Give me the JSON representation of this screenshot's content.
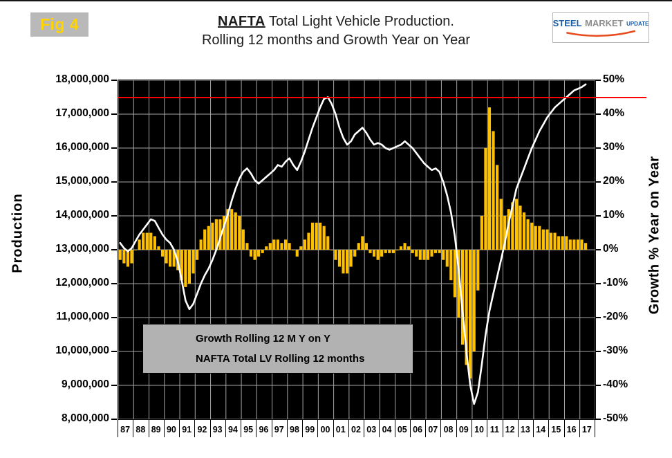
{
  "fig_label": "Fig 4",
  "title": {
    "emph": "NAFTA",
    "rest": " Total Light Vehicle Production.",
    "line2": "Rolling 12 months and Growth Year on Year"
  },
  "logo": {
    "word1": "STEEL",
    "word2": "MARKET",
    "word3": "UPDATE"
  },
  "colors": {
    "bar": "#FFC000",
    "line": "#FFFFFF",
    "reference": "#FF0000",
    "plot_bg": "#000000",
    "grid": "#FFFFFF",
    "fig_label": "#FFD400",
    "fig_label_bg": "#B9B9B9",
    "legend_bg": "#B2B2B2",
    "logo_blue": "#1A5BA6",
    "logo_gray": "#8C8C8C",
    "logo_swoosh": "#E84C1E"
  },
  "legend": {
    "items": [
      {
        "label": "Growth Rolling 12 M Y on Y",
        "swatch_color": "#FFC000",
        "text_color": "#000000"
      },
      {
        "label": "NAFTA Total LV Rolling 12 months",
        "swatch_color": "#FFFFFF",
        "text_color": "#FFFFFF"
      }
    ]
  },
  "chart_data": {
    "type": "combo",
    "subtypes": [
      "bar",
      "line"
    ],
    "title": "NAFTA Total Light Vehicle Production. Rolling 12 months and Growth Year on Year",
    "start_year": 1987,
    "end_year": 2017,
    "points_per_year": 4,
    "x_year_labels": [
      "87",
      "88",
      "89",
      "90",
      "91",
      "92",
      "93",
      "94",
      "95",
      "96",
      "97",
      "98",
      "99",
      "00",
      "01",
      "02",
      "03",
      "04",
      "05",
      "06",
      "07",
      "08",
      "09",
      "10",
      "11",
      "12",
      "13",
      "14",
      "15",
      "16",
      "17"
    ],
    "left_axis": {
      "label": "Production",
      "min": 8000000,
      "max": 18000000,
      "step": 1000000,
      "tick_labels": [
        "18,000,000",
        "17,000,000",
        "16,000,000",
        "15,000,000",
        "14,000,000",
        "13,000,000",
        "12,000,000",
        "11,000,000",
        "10,000,000",
        "9,000,000",
        "8,000,000"
      ]
    },
    "right_axis": {
      "label": "Growth % Year on Year",
      "min": -50,
      "max": 50,
      "step": 10,
      "tick_labels": [
        "50%",
        "40%",
        "30%",
        "20%",
        "10%",
        "0%",
        "-10%",
        "-20%",
        "-30%",
        "-40%",
        "-50%"
      ]
    },
    "reference_line": {
      "production_value": 17500000,
      "color": "#FF0000"
    },
    "grid": true,
    "legend_position": "inside-bottom-left",
    "series": [
      {
        "name": "Growth Rolling 12 M Y on Y",
        "type": "bar",
        "axis": "right",
        "unit": "percent_yoy",
        "color": "#FFC000",
        "values": [
          -3,
          -4,
          -5,
          -4,
          0,
          3,
          5,
          5,
          5,
          4,
          1,
          -2,
          -4,
          -5,
          -5,
          -6,
          -9,
          -11,
          -10,
          -7,
          -3,
          3,
          6,
          7,
          8,
          9,
          9,
          10,
          12,
          12,
          11,
          10,
          6,
          2,
          -2,
          -3,
          -2,
          -1,
          1,
          2,
          3,
          3,
          2,
          3,
          2,
          0,
          -2,
          1,
          3,
          5,
          8,
          8,
          8,
          7,
          4,
          0,
          -3,
          -5,
          -7,
          -7,
          -5,
          -2,
          2,
          4,
          2,
          -1,
          -2,
          -3,
          -2,
          -1,
          -1,
          -1,
          0,
          1,
          2,
          1,
          -1,
          -2,
          -3,
          -3,
          -3,
          -2,
          -1,
          -1,
          -3,
          -5,
          -9,
          -14,
          -20,
          -28,
          -34,
          -38,
          -30,
          -12,
          10,
          30,
          42,
          35,
          25,
          15,
          10,
          12,
          14,
          15,
          13,
          11,
          9,
          8,
          7,
          7,
          6,
          6,
          5,
          5,
          4,
          4,
          4,
          3,
          3,
          3,
          3,
          2
        ]
      },
      {
        "name": "NAFTA Total LV Rolling 12 months",
        "type": "line",
        "axis": "left",
        "unit": "millions_of_vehicles",
        "color": "#FFFFFF",
        "values": [
          13.2,
          13.05,
          12.95,
          13.05,
          13.25,
          13.45,
          13.6,
          13.75,
          13.9,
          13.85,
          13.65,
          13.45,
          13.3,
          13.2,
          13.0,
          12.65,
          12.1,
          11.5,
          11.25,
          11.4,
          11.7,
          12.0,
          12.25,
          12.45,
          12.7,
          13.0,
          13.35,
          13.7,
          14.05,
          14.45,
          14.8,
          15.1,
          15.3,
          15.4,
          15.25,
          15.05,
          14.95,
          15.05,
          15.15,
          15.25,
          15.35,
          15.5,
          15.45,
          15.6,
          15.7,
          15.5,
          15.35,
          15.6,
          15.9,
          16.25,
          16.6,
          16.9,
          17.2,
          17.45,
          17.5,
          17.3,
          17.0,
          16.6,
          16.3,
          16.1,
          16.2,
          16.4,
          16.5,
          16.6,
          16.45,
          16.25,
          16.1,
          16.15,
          16.1,
          16.0,
          15.95,
          16.0,
          16.05,
          16.1,
          16.2,
          16.1,
          16.0,
          15.85,
          15.7,
          15.55,
          15.45,
          15.35,
          15.4,
          15.3,
          15.0,
          14.6,
          14.1,
          13.4,
          12.4,
          11.2,
          10.0,
          9.0,
          8.45,
          8.8,
          9.6,
          10.5,
          11.2,
          11.7,
          12.2,
          12.7,
          13.2,
          13.8,
          14.3,
          14.8,
          15.1,
          15.4,
          15.7,
          16.0,
          16.25,
          16.5,
          16.7,
          16.9,
          17.05,
          17.2,
          17.3,
          17.4,
          17.5,
          17.6,
          17.7,
          17.75,
          17.8,
          17.88
        ]
      }
    ]
  }
}
